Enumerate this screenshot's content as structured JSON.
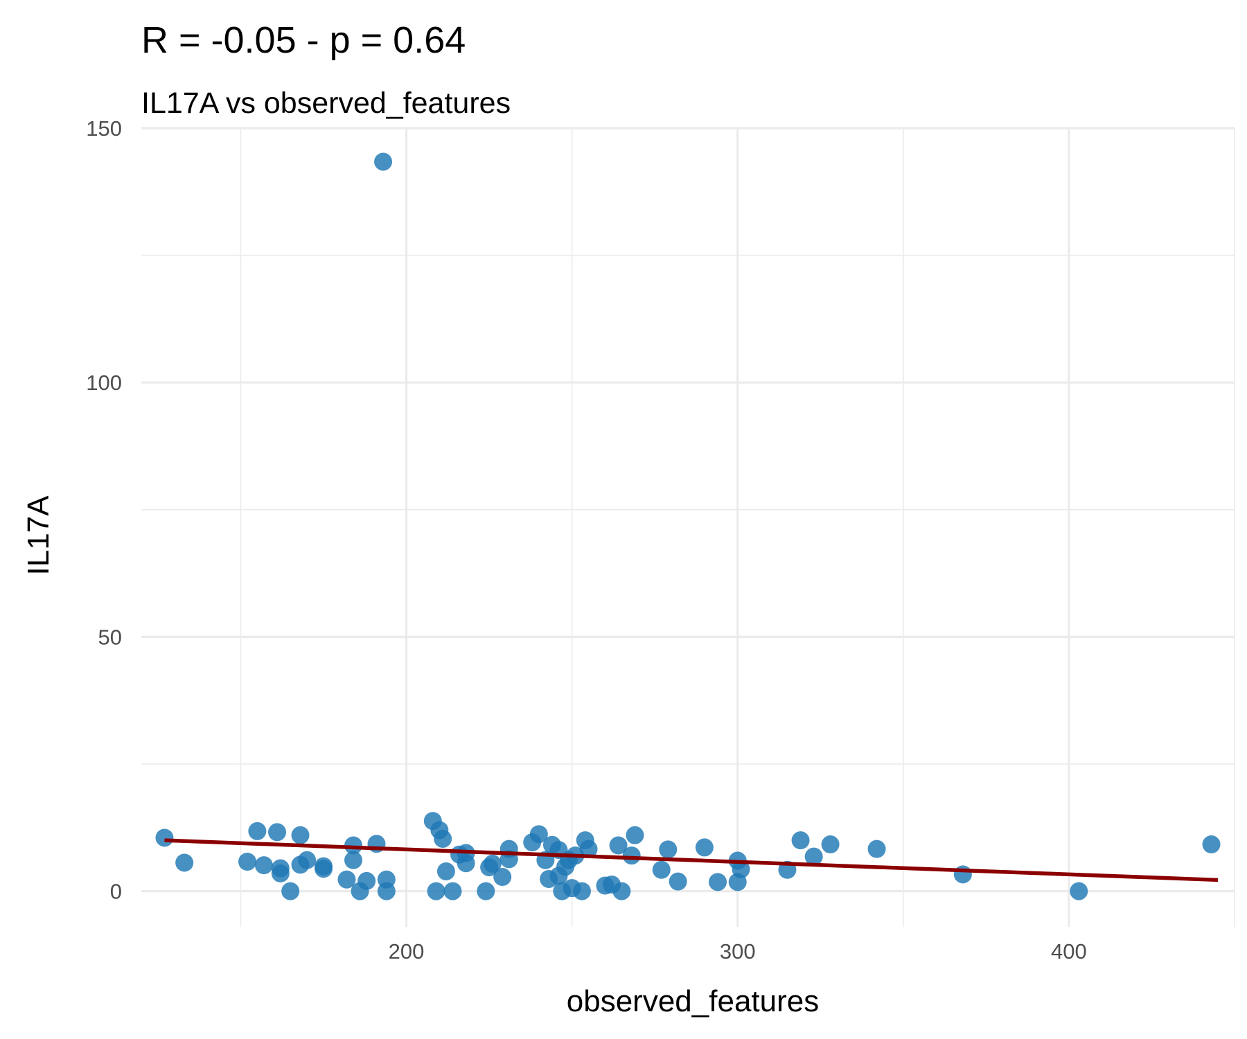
{
  "chart_data": {
    "type": "scatter",
    "title": "R = -0.05 - p = 0.64",
    "subtitle": "IL17A vs observed_features",
    "xlabel": "observed_features",
    "ylabel": "IL17A",
    "xlim": [
      120,
      450
    ],
    "ylim": [
      -7,
      150
    ],
    "x_ticks": [
      200,
      300,
      400
    ],
    "y_ticks": [
      0,
      50,
      100,
      150
    ],
    "x_minor_ticks": [
      150,
      250,
      350,
      450
    ],
    "y_minor_ticks": [
      25,
      75,
      125
    ],
    "grid": true,
    "point_color": "#1f77b4",
    "fit_color": "#8b0000",
    "fit_line": {
      "x": [
        127,
        445
      ],
      "y": [
        10,
        2.2
      ]
    },
    "points": [
      {
        "x": 127,
        "y": 10.5
      },
      {
        "x": 133,
        "y": 5.6
      },
      {
        "x": 152,
        "y": 5.8
      },
      {
        "x": 155,
        "y": 11.8
      },
      {
        "x": 157,
        "y": 5.1
      },
      {
        "x": 161,
        "y": 11.6
      },
      {
        "x": 162,
        "y": 3.5
      },
      {
        "x": 162,
        "y": 4.5
      },
      {
        "x": 165,
        "y": 0
      },
      {
        "x": 168,
        "y": 5.2
      },
      {
        "x": 168,
        "y": 11.0
      },
      {
        "x": 170,
        "y": 6.1
      },
      {
        "x": 175,
        "y": 4.4
      },
      {
        "x": 175,
        "y": 4.9
      },
      {
        "x": 182,
        "y": 2.3
      },
      {
        "x": 184,
        "y": 9.0
      },
      {
        "x": 184,
        "y": 6.1
      },
      {
        "x": 186,
        "y": 0
      },
      {
        "x": 188,
        "y": 2.0
      },
      {
        "x": 191,
        "y": 9.3
      },
      {
        "x": 193,
        "y": 143.4
      },
      {
        "x": 194,
        "y": 2.3
      },
      {
        "x": 194,
        "y": 0
      },
      {
        "x": 208,
        "y": 13.8
      },
      {
        "x": 209,
        "y": 0
      },
      {
        "x": 210,
        "y": 12.0
      },
      {
        "x": 211,
        "y": 10.3
      },
      {
        "x": 212,
        "y": 3.9
      },
      {
        "x": 214,
        "y": 0
      },
      {
        "x": 216,
        "y": 7.2
      },
      {
        "x": 218,
        "y": 7.5
      },
      {
        "x": 218,
        "y": 5.5
      },
      {
        "x": 224,
        "y": 0
      },
      {
        "x": 225,
        "y": 4.7
      },
      {
        "x": 226,
        "y": 5.4
      },
      {
        "x": 229,
        "y": 2.8
      },
      {
        "x": 231,
        "y": 8.3
      },
      {
        "x": 231,
        "y": 6.3
      },
      {
        "x": 238,
        "y": 9.6
      },
      {
        "x": 240,
        "y": 11.2
      },
      {
        "x": 242,
        "y": 6.1
      },
      {
        "x": 243,
        "y": 2.4
      },
      {
        "x": 244,
        "y": 9.1
      },
      {
        "x": 246,
        "y": 8.1
      },
      {
        "x": 246,
        "y": 3.0
      },
      {
        "x": 247,
        "y": 0
      },
      {
        "x": 248,
        "y": 4.8
      },
      {
        "x": 249,
        "y": 6.1
      },
      {
        "x": 250,
        "y": 0.6
      },
      {
        "x": 251,
        "y": 7.0
      },
      {
        "x": 253,
        "y": 0
      },
      {
        "x": 254,
        "y": 10.0
      },
      {
        "x": 255,
        "y": 8.3
      },
      {
        "x": 260,
        "y": 1.1
      },
      {
        "x": 262,
        "y": 1.3
      },
      {
        "x": 264,
        "y": 9.0
      },
      {
        "x": 265,
        "y": 0
      },
      {
        "x": 268,
        "y": 7.0
      },
      {
        "x": 269,
        "y": 11.0
      },
      {
        "x": 277,
        "y": 4.2
      },
      {
        "x": 279,
        "y": 8.2
      },
      {
        "x": 282,
        "y": 1.9
      },
      {
        "x": 290,
        "y": 8.6
      },
      {
        "x": 294,
        "y": 1.8
      },
      {
        "x": 300,
        "y": 6.0
      },
      {
        "x": 300,
        "y": 1.8
      },
      {
        "x": 301,
        "y": 4.3
      },
      {
        "x": 315,
        "y": 4.2
      },
      {
        "x": 319,
        "y": 10.0
      },
      {
        "x": 323,
        "y": 6.8
      },
      {
        "x": 328,
        "y": 9.2
      },
      {
        "x": 342,
        "y": 8.3
      },
      {
        "x": 368,
        "y": 3.3
      },
      {
        "x": 403,
        "y": 0
      },
      {
        "x": 443,
        "y": 9.2
      }
    ]
  }
}
